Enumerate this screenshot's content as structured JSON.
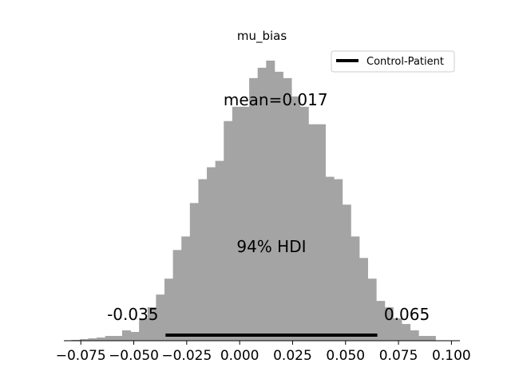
{
  "chart_data": {
    "type": "bar",
    "title": "mu_bias",
    "xlabel": "",
    "ylabel": "",
    "bin_width": 0.004,
    "bins": [
      {
        "x0": -0.0795,
        "count": 1
      },
      {
        "x0": -0.0755,
        "count": 2
      },
      {
        "x0": -0.0715,
        "count": 3
      },
      {
        "x0": -0.0675,
        "count": 4
      },
      {
        "x0": -0.0635,
        "count": 6
      },
      {
        "x0": -0.0595,
        "count": 6
      },
      {
        "x0": -0.0555,
        "count": 13
      },
      {
        "x0": -0.0515,
        "count": 11
      },
      {
        "x0": -0.0475,
        "count": 28
      },
      {
        "x0": -0.0435,
        "count": 42
      },
      {
        "x0": -0.0395,
        "count": 58
      },
      {
        "x0": -0.0355,
        "count": 78
      },
      {
        "x0": -0.0315,
        "count": 114
      },
      {
        "x0": -0.0275,
        "count": 131
      },
      {
        "x0": -0.0235,
        "count": 173
      },
      {
        "x0": -0.0195,
        "count": 203
      },
      {
        "x0": -0.0155,
        "count": 218
      },
      {
        "x0": -0.0115,
        "count": 226
      },
      {
        "x0": -0.0075,
        "count": 276
      },
      {
        "x0": -0.0035,
        "count": 294
      },
      {
        "x0": 0.0005,
        "count": 294
      },
      {
        "x0": 0.0045,
        "count": 330
      },
      {
        "x0": 0.0085,
        "count": 343
      },
      {
        "x0": 0.0125,
        "count": 352
      },
      {
        "x0": 0.0165,
        "count": 338
      },
      {
        "x0": 0.0205,
        "count": 330
      },
      {
        "x0": 0.0245,
        "count": 307
      },
      {
        "x0": 0.0285,
        "count": 294
      },
      {
        "x0": 0.0325,
        "count": 272
      },
      {
        "x0": 0.0365,
        "count": 272
      },
      {
        "x0": 0.0405,
        "count": 206
      },
      {
        "x0": 0.0445,
        "count": 203
      },
      {
        "x0": 0.0485,
        "count": 171
      },
      {
        "x0": 0.0525,
        "count": 131
      },
      {
        "x0": 0.0565,
        "count": 104
      },
      {
        "x0": 0.0605,
        "count": 78
      },
      {
        "x0": 0.0645,
        "count": 50
      },
      {
        "x0": 0.0685,
        "count": 42
      },
      {
        "x0": 0.0725,
        "count": 28
      },
      {
        "x0": 0.0765,
        "count": 21
      },
      {
        "x0": 0.0805,
        "count": 13
      },
      {
        "x0": 0.0845,
        "count": 6
      },
      {
        "x0": 0.0885,
        "count": 6
      }
    ],
    "xlim": [
      -0.083,
      0.104
    ],
    "ylim": [
      0,
      370
    ],
    "x_ticks": [
      -0.075,
      -0.05,
      -0.025,
      0.0,
      0.025,
      0.05,
      0.075,
      0.1
    ],
    "x_tick_labels": [
      "−0.075",
      "−0.050",
      "−0.025",
      "0.000",
      "0.025",
      "0.050",
      "0.075",
      "0.100"
    ],
    "mean": 0.017,
    "mean_label": "mean=0.017",
    "hdi_prob_label": "94% HDI",
    "hdi": [
      -0.035,
      0.065
    ],
    "hdi_low_label": "-0.035",
    "hdi_high_label": "0.065",
    "bar_color": "#a4a4a4",
    "hdi_color": "#000000",
    "legend": {
      "placement": "top-right",
      "entries": [
        "Control-Patient"
      ]
    }
  }
}
